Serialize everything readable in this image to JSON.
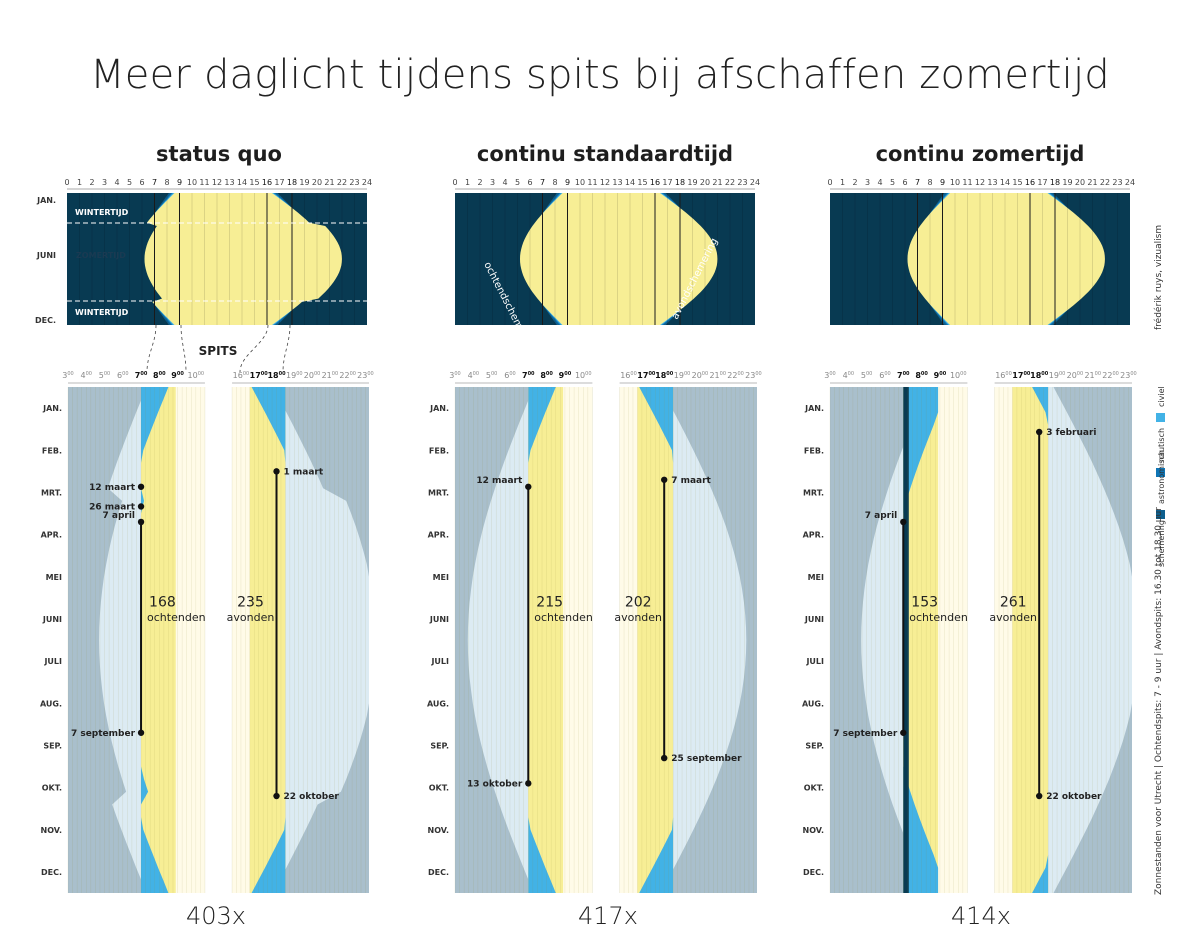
{
  "title": "Meer daglicht tijdens spits bij afschaffen zomertijd",
  "spits_label": "SPITS",
  "credit": "frédérik ruys, vizualism",
  "footnote": "Zonnestanden voor Utrecht | Ochtendspits: 7 - 9 uur | Avondspits: 16.30 tot 18.30 uur",
  "legend": {
    "title": "schemering",
    "items": [
      {
        "label": "civiel",
        "color": "#42b2e6"
      },
      {
        "label": "nautisch",
        "color": "#0f75b5"
      },
      {
        "label": "astronomisch",
        "color": "#0d5f8e"
      }
    ]
  },
  "colors": {
    "night": "#083a52",
    "astro": "#0d5f8e",
    "nautical": "#0f75b5",
    "civil": "#42b2e6",
    "day": "#f7ee95",
    "muted": "#a9bfcc",
    "pale": "#fffbe8"
  },
  "top_hours": [
    "0",
    "1",
    "2",
    "3",
    "4",
    "5",
    "6",
    "7",
    "8",
    "9",
    "10",
    "11",
    "12",
    "13",
    "14",
    "15",
    "16",
    "17",
    "18",
    "19",
    "20",
    "21",
    "22",
    "23",
    "24"
  ],
  "top_months": [
    "JAN.",
    "JUNI",
    "DEC."
  ],
  "bottom_hours": [
    {
      "h": "3",
      "m": "00"
    },
    {
      "h": "4",
      "m": "00"
    },
    {
      "h": "5",
      "m": "00"
    },
    {
      "h": "6",
      "m": "00"
    },
    {
      "h": "7",
      "m": "00"
    },
    {
      "h": "8",
      "m": "00"
    },
    {
      "h": "9",
      "m": "00"
    },
    {
      "h": "10",
      "m": "00"
    },
    {
      "h": "16",
      "m": "00"
    },
    {
      "h": "17",
      "m": "00"
    },
    {
      "h": "18",
      "m": "00"
    },
    {
      "h": "19",
      "m": "00"
    },
    {
      "h": "20",
      "m": "00"
    },
    {
      "h": "21",
      "m": "00"
    },
    {
      "h": "22",
      "m": "00"
    },
    {
      "h": "23",
      "m": "00"
    }
  ],
  "bottom_months": [
    "JAN.",
    "FEB.",
    "MRT.",
    "APR.",
    "MEI",
    "JUNI",
    "JULI",
    "AUG.",
    "SEP.",
    "OKT.",
    "NOV.",
    "DEC."
  ],
  "chart_data": [
    {
      "type": "area",
      "title": "status quo",
      "total": "403x",
      "band_labels": [
        "WINTERTIJD",
        "ZOMERTIJD",
        "WINTERTIJD"
      ],
      "curve_labels": [],
      "morning": {
        "count": "168",
        "label": "ochtenden",
        "start": "7 april",
        "end": "7 september",
        "dates": [
          "12 maart",
          "26 maart",
          "7 april",
          "7 september"
        ]
      },
      "evening": {
        "count": "235",
        "label": "avonden",
        "start": "1 maart",
        "end": "22 oktober"
      }
    },
    {
      "type": "area",
      "title": "continu standaardtijd",
      "total": "417x",
      "band_labels": [],
      "curve_labels": [
        "ochtendschemering",
        "avondschemering"
      ],
      "morning": {
        "count": "215",
        "label": "ochtenden",
        "start": "12 maart",
        "end": "13 oktober",
        "dates": []
      },
      "evening": {
        "count": "202",
        "label": "avonden",
        "start": "7 maart",
        "end": "25 september"
      }
    },
    {
      "type": "area",
      "title": "continu zomertijd",
      "total": "414x",
      "band_labels": [],
      "curve_labels": [],
      "morning": {
        "count": "153",
        "label": "ochtenden",
        "start": "7 april",
        "end": "7 september",
        "dates": []
      },
      "evening": {
        "count": "261",
        "label": "avonden",
        "start": "3 februari",
        "end": "22 oktober"
      }
    }
  ]
}
